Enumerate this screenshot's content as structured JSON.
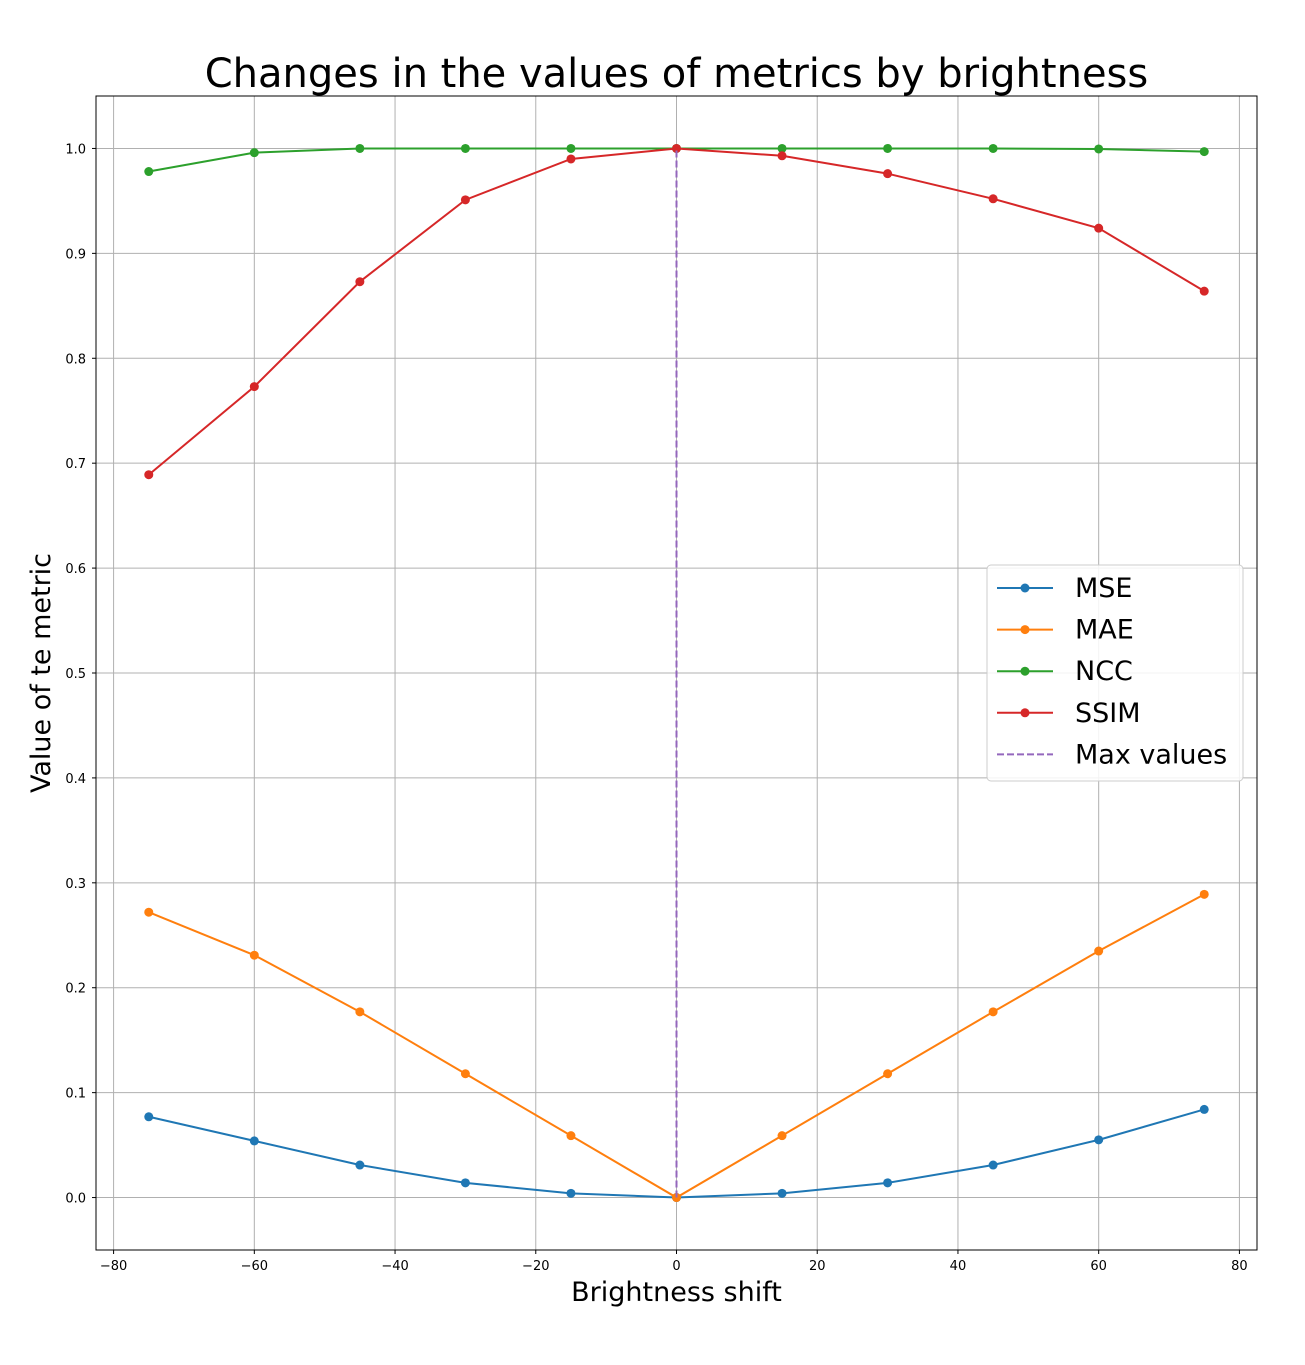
{
  "chart_data": {
    "type": "line",
    "title": "Changes in the values of metrics by brightness",
    "xlabel": "Brightness shift",
    "ylabel": "Value of te metric",
    "xlim": [
      -82.5,
      82.5
    ],
    "ylim": [
      -0.05,
      1.05
    ],
    "xticks": [
      -80,
      -60,
      -40,
      -20,
      0,
      20,
      40,
      60,
      80
    ],
    "xtick_labels": [
      "−80",
      "−60",
      "−40",
      "−20",
      "0",
      "20",
      "40",
      "60",
      "80"
    ],
    "yticks": [
      0.0,
      0.1,
      0.2,
      0.3,
      0.4,
      0.5,
      0.6,
      0.7,
      0.8,
      0.9,
      1.0
    ],
    "ytick_labels": [
      "0.0",
      "0.1",
      "0.2",
      "0.3",
      "0.4",
      "0.5",
      "0.6",
      "0.7",
      "0.8",
      "0.9",
      "1.0"
    ],
    "grid": true,
    "legend_position": "center-right",
    "x": [
      -75,
      -60,
      -45,
      -30,
      -15,
      0,
      15,
      30,
      45,
      60,
      75
    ],
    "series": [
      {
        "name": "MSE",
        "color": "#1f77b4",
        "marker": "circle",
        "style": "solid",
        "values": [
          0.077,
          0.054,
          0.031,
          0.014,
          0.004,
          0.0,
          0.004,
          0.014,
          0.031,
          0.055,
          0.084
        ]
      },
      {
        "name": "MAE",
        "color": "#ff7f0e",
        "marker": "circle",
        "style": "solid",
        "values": [
          0.272,
          0.231,
          0.177,
          0.118,
          0.059,
          0.0,
          0.059,
          0.118,
          0.177,
          0.235,
          0.289
        ]
      },
      {
        "name": "NCC",
        "color": "#2ca02c",
        "marker": "circle",
        "style": "solid",
        "values": [
          0.978,
          0.996,
          1.0,
          1.0,
          1.0,
          1.0,
          1.0,
          1.0,
          1.0,
          0.9995,
          0.997
        ]
      },
      {
        "name": "SSIM",
        "color": "#d62728",
        "marker": "circle",
        "style": "solid",
        "values": [
          0.689,
          0.773,
          0.873,
          0.951,
          0.99,
          1.0,
          0.993,
          0.976,
          0.952,
          0.924,
          0.864
        ]
      }
    ],
    "reference_line": {
      "name": "Max values",
      "color": "#9467bd",
      "style": "dashed",
      "x": 0,
      "y_from": 0.0,
      "y_to": 1.0
    }
  }
}
